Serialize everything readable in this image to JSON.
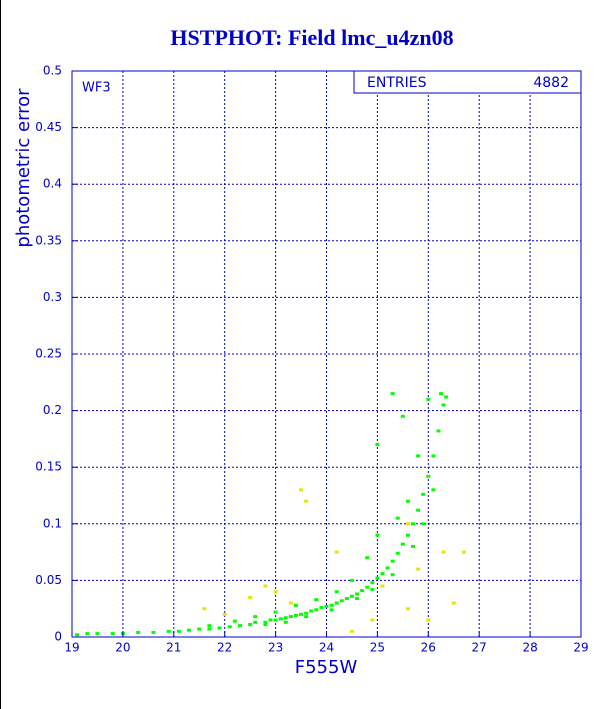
{
  "chart_data": {
    "type": "scatter",
    "title": "HSTPHOT: Field lmc_u4zn08",
    "x_label": "F555W",
    "y_label": "photometric error",
    "annotation": "WF3",
    "stats_label": "ENTRIES",
    "stats_value": 4882,
    "xlim": [
      19,
      29
    ],
    "xticks": [
      19,
      20,
      21,
      22,
      23,
      24,
      25,
      26,
      27,
      28,
      29
    ],
    "ylim": [
      0,
      0.5
    ],
    "yticks": [
      0,
      0.05,
      0.1,
      0.15,
      0.2,
      0.25,
      0.3,
      0.35,
      0.4,
      0.45,
      0.5
    ],
    "grid": true,
    "series": [
      {
        "color": "#00ff00",
        "x": [
          19.1,
          19.3,
          19.5,
          19.8,
          20.0,
          20.3,
          20.6,
          20.9,
          21.1,
          21.3,
          21.5,
          21.7,
          21.9,
          22.1,
          22.3,
          22.5,
          22.6,
          22.8,
          22.9,
          23.0,
          23.1,
          23.2,
          23.3,
          23.4,
          23.5,
          23.6,
          23.7,
          23.8,
          23.9,
          24.0,
          24.1,
          24.2,
          24.3,
          24.4,
          24.5,
          24.6,
          24.7,
          24.8,
          24.9,
          25.0,
          25.1,
          25.2,
          25.3,
          25.4,
          25.5,
          25.6,
          25.7,
          25.8,
          25.9,
          26.0,
          26.1,
          26.2,
          26.3,
          26.35,
          26.25,
          26.0,
          25.8,
          25.6,
          25.4,
          25.0,
          24.8,
          24.5,
          24.2,
          23.8,
          23.4,
          23.0,
          22.6,
          22.2,
          21.7,
          25.5,
          25.3,
          25.0,
          26.1,
          25.9,
          25.7,
          25.3,
          24.9,
          24.6,
          24.1,
          23.6,
          23.2,
          22.8
        ],
        "y": [
          0.002,
          0.003,
          0.003,
          0.003,
          0.003,
          0.004,
          0.004,
          0.005,
          0.005,
          0.006,
          0.007,
          0.007,
          0.008,
          0.009,
          0.01,
          0.011,
          0.013,
          0.013,
          0.015,
          0.015,
          0.016,
          0.017,
          0.018,
          0.019,
          0.02,
          0.021,
          0.023,
          0.024,
          0.026,
          0.027,
          0.028,
          0.03,
          0.032,
          0.034,
          0.036,
          0.038,
          0.041,
          0.044,
          0.048,
          0.052,
          0.056,
          0.061,
          0.067,
          0.074,
          0.082,
          0.09,
          0.1,
          0.112,
          0.126,
          0.142,
          0.16,
          0.182,
          0.205,
          0.212,
          0.215,
          0.21,
          0.16,
          0.12,
          0.105,
          0.09,
          0.07,
          0.05,
          0.04,
          0.033,
          0.028,
          0.022,
          0.018,
          0.014,
          0.01,
          0.195,
          0.215,
          0.17,
          0.13,
          0.1,
          0.08,
          0.055,
          0.042,
          0.034,
          0.024,
          0.018,
          0.013,
          0.011
        ]
      },
      {
        "color": "#e6e600",
        "x": [
          21.6,
          22.0,
          22.5,
          23.0,
          23.3,
          23.5,
          23.6,
          24.2,
          24.5,
          24.9,
          25.1,
          25.6,
          25.8,
          26.0,
          26.3,
          26.5,
          26.7,
          22.8,
          25.6
        ],
        "y": [
          0.025,
          0.02,
          0.035,
          0.04,
          0.03,
          0.13,
          0.12,
          0.075,
          0.005,
          0.015,
          0.045,
          0.025,
          0.06,
          0.015,
          0.075,
          0.03,
          0.075,
          0.045,
          0.1
        ]
      }
    ]
  }
}
